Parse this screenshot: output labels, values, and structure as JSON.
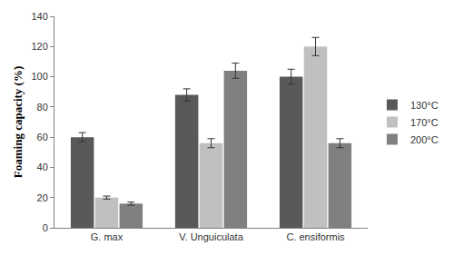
{
  "chart_data": {
    "type": "bar",
    "y_label": "Foaming capacity (%)",
    "categories": [
      "G. max",
      "V. Unguiculata",
      "C. ensiformis"
    ],
    "series": [
      {
        "name": "130°C",
        "color": "#595959",
        "values": [
          60,
          88,
          100
        ],
        "errors": [
          3,
          4,
          5
        ]
      },
      {
        "name": "170°C",
        "color": "#c0c0c0",
        "values": [
          20,
          56,
          120
        ],
        "errors": [
          1,
          3,
          6
        ]
      },
      {
        "name": "200°C",
        "color": "#808080",
        "values": [
          16,
          104,
          56
        ],
        "errors": [
          1,
          5,
          3
        ]
      }
    ],
    "ylim": [
      0,
      140
    ],
    "yticks": [
      0,
      20,
      40,
      60,
      80,
      100,
      120,
      140
    ],
    "grid": false,
    "legend": "right"
  }
}
